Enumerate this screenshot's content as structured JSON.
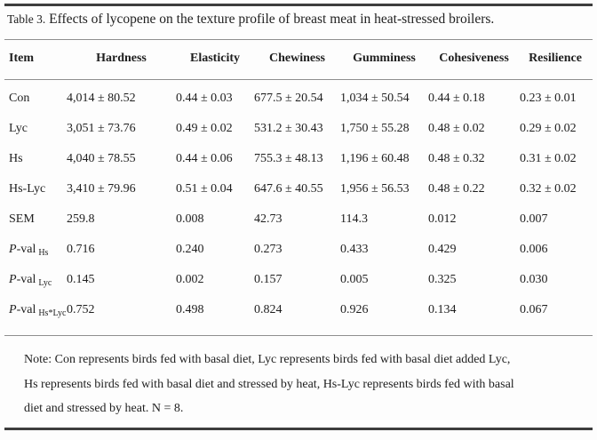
{
  "title": {
    "label": "Table 3.",
    "text": "Effects of lycopene on the texture profile of breast meat in heat-stressed broilers."
  },
  "table": {
    "columns": [
      "Item",
      "Hardness",
      "Elasticity",
      "Chewiness",
      "Gumminess",
      "Cohesiveness",
      "Resilience"
    ],
    "rows": [
      {
        "label": "Con",
        "values": [
          "4,014 ± 80.52",
          "0.44 ± 0.03",
          "677.5 ± 20.54",
          "1,034 ± 50.54",
          "0.44 ± 0.18",
          "0.23 ± 0.01"
        ]
      },
      {
        "label": "Lyc",
        "values": [
          "3,051 ± 73.76",
          "0.49 ± 0.02",
          "531.2 ± 30.43",
          "1,750 ± 55.28",
          "0.48 ± 0.02",
          "0.29 ± 0.02"
        ]
      },
      {
        "label": "Hs",
        "values": [
          "4,040 ± 78.55",
          "0.44 ± 0.06",
          "755.3 ± 48.13",
          "1,196 ± 60.48",
          "0.48 ± 0.32",
          "0.31 ± 0.02"
        ]
      },
      {
        "label": "Hs-Lyc",
        "values": [
          "3,410 ± 79.96",
          "0.51 ± 0.04",
          "647.6 ± 40.55",
          "1,956 ± 56.53",
          "0.48 ± 0.22",
          "0.32 ± 0.02"
        ]
      },
      {
        "label": "SEM",
        "values": [
          "259.8",
          "0.008",
          "42.73",
          "114.3",
          "0.012",
          "0.007"
        ]
      },
      {
        "label_italic": "P",
        "label": "-val",
        "label_sub": "Hs",
        "values": [
          "0.716",
          "0.240",
          "0.273",
          "0.433",
          "0.429",
          "0.006"
        ]
      },
      {
        "label_italic": "P",
        "label": "-val",
        "label_sub": "Lyc",
        "values": [
          "0.145",
          "0.002",
          "0.157",
          "0.005",
          "0.325",
          "0.030"
        ]
      },
      {
        "label_italic": "P",
        "label": "-val",
        "label_sub": "Hs*Lyc",
        "values": [
          "0.752",
          "0.498",
          "0.824",
          "0.926",
          "0.134",
          "0.067"
        ]
      }
    ]
  },
  "note": {
    "lines": [
      "Note: Con represents birds fed with basal diet, Lyc represents birds fed with basal diet added Lyc,",
      "Hs represents birds fed with basal diet and stressed by heat, Hs-Lyc represents birds fed with basal",
      "diet and stressed by heat. N = 8."
    ]
  },
  "colors": {
    "background": "#fdfdfd",
    "text": "#1e1e1e",
    "rule_heavy": "#3d3d3d",
    "rule_light": "#8e8e8e"
  }
}
